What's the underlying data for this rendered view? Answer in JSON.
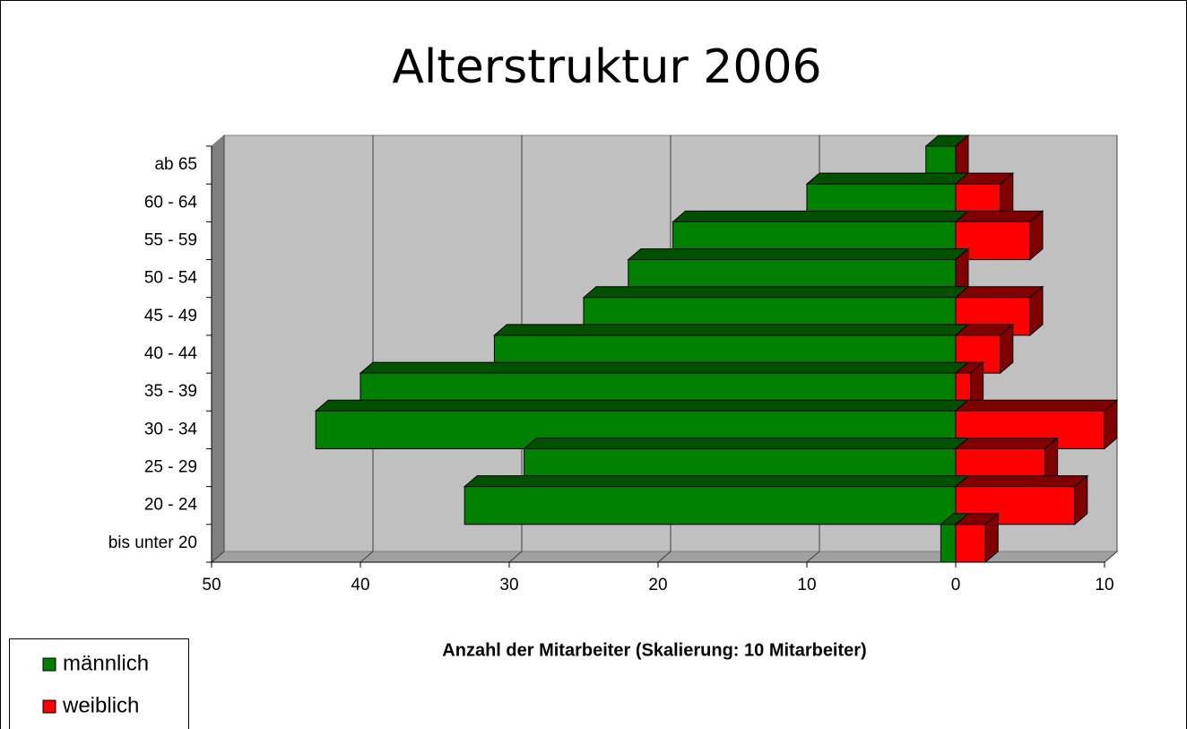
{
  "chart_data": {
    "type": "bar",
    "orientation": "horizontal",
    "title": "Alterstruktur 2006",
    "x_label": "Anzahl der Mitarbeiter (Skalierung: 10 Mitarbeiter)",
    "categories": [
      "bis unter 20",
      "20 - 24",
      "25 - 29",
      "30 - 34",
      "35 - 39",
      "40 - 44",
      "45 - 49",
      "50 - 54",
      "55 - 59",
      "60 - 64",
      "ab 65"
    ],
    "series": [
      {
        "name": "männlich",
        "color": "#008000",
        "values": [
          -1,
          -33,
          -29,
          -43,
          -40,
          -31,
          -25,
          -22,
          -19,
          -10,
          -2
        ]
      },
      {
        "name": "weiblich",
        "color": "#ff0000",
        "values": [
          2,
          8,
          6,
          10,
          1,
          3,
          5,
          0,
          5,
          3,
          0
        ]
      }
    ],
    "xlim": [
      -50,
      10
    ],
    "xticks": [
      {
        "value": -50,
        "label": "50"
      },
      {
        "value": -40,
        "label": "40"
      },
      {
        "value": -30,
        "label": "30"
      },
      {
        "value": -20,
        "label": "20"
      },
      {
        "value": -10,
        "label": "10"
      },
      0,
      10
    ],
    "grid": true,
    "legend": "bottom-left"
  }
}
